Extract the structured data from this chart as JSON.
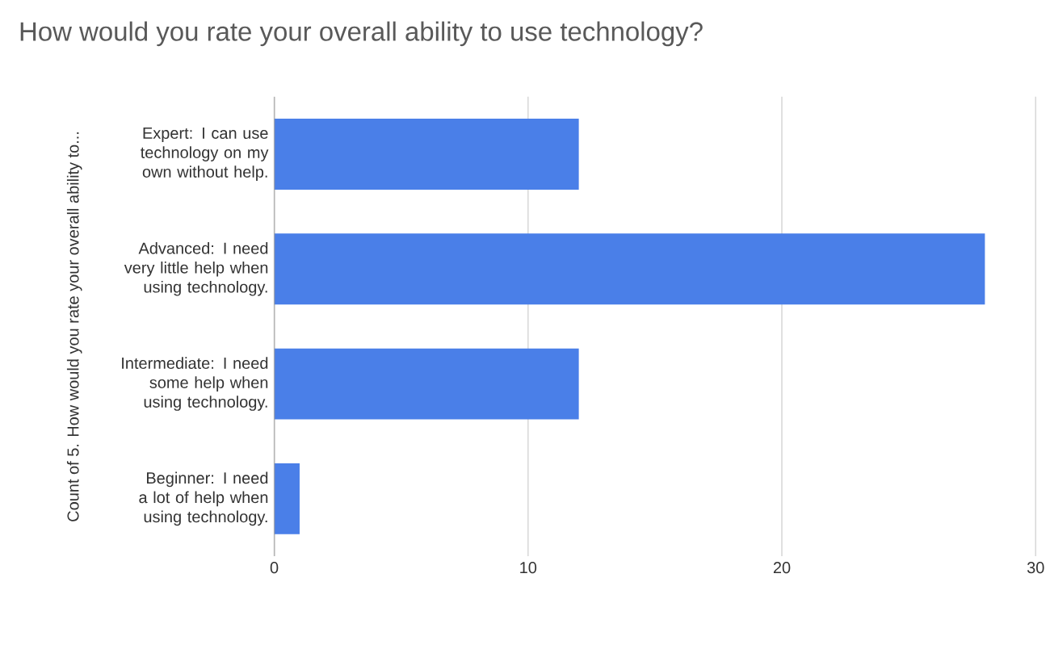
{
  "chart_data": {
    "type": "bar",
    "orientation": "horizontal",
    "title": "How would you rate your overall ability to use technology?",
    "ylabel": "Count of 5. How would you rate your overall ability to...",
    "categories": [
      "Expert: I can use technology on my own without help.",
      "Advanced: I need very little help when using technology.",
      "Intermediate: I need some help when using technology.",
      "Beginner: I need a lot of help when using technology."
    ],
    "values": [
      12,
      28,
      12,
      1
    ],
    "color": "#4a7fe8",
    "xlim": [
      0,
      30
    ],
    "xticks": [
      0,
      10,
      20,
      30
    ],
    "grid": "x"
  }
}
